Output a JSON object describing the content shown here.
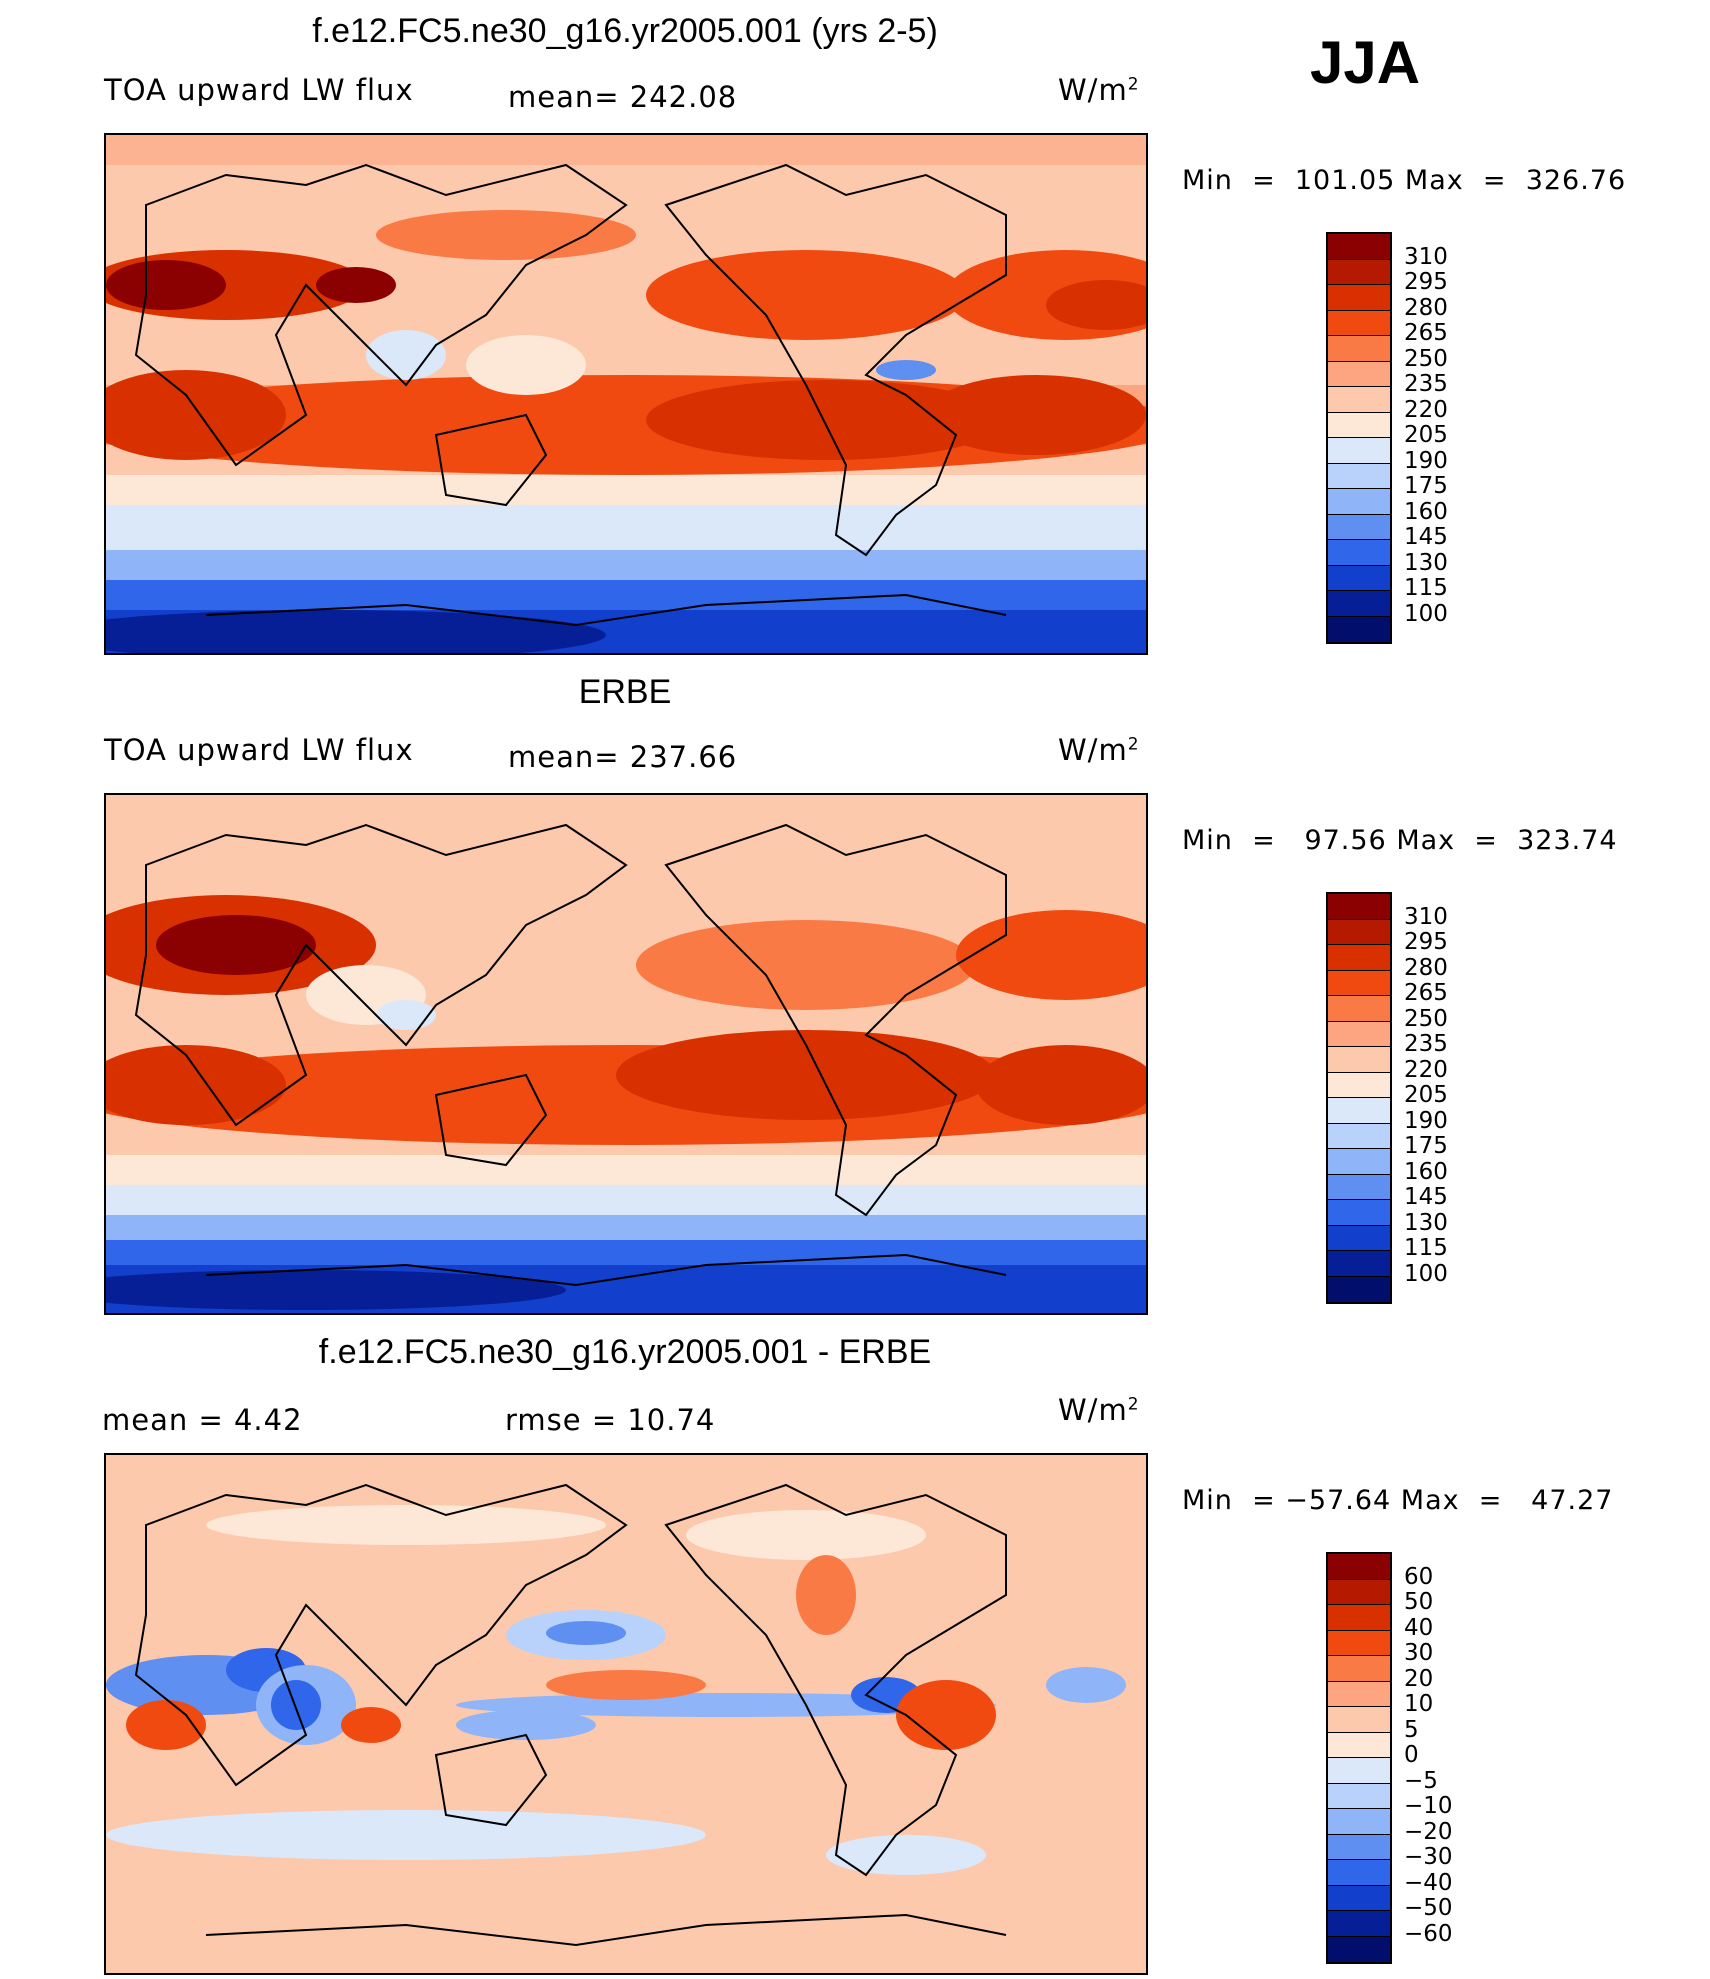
{
  "season_label": "JJA",
  "units": "W/m",
  "units_sup": "2",
  "panels": [
    {
      "title": "f.e12.FC5.ne30_g16.yr2005.001 (yrs 2-5)",
      "left_label": "TOA upward LW flux",
      "stat_label": "mean= 242.08",
      "minmax": "Min  =  101.05 Max  =  326.76",
      "ticks": [
        "310",
        "295",
        "280",
        "265",
        "250",
        "235",
        "220",
        "205",
        "190",
        "175",
        "160",
        "145",
        "130",
        "115",
        "100"
      ]
    },
    {
      "title": "ERBE",
      "left_label": "TOA upward LW flux",
      "stat_label": "mean= 237.66",
      "minmax": "Min  =   97.56 Max  =  323.74",
      "ticks": [
        "310",
        "295",
        "280",
        "265",
        "250",
        "235",
        "220",
        "205",
        "190",
        "175",
        "160",
        "145",
        "130",
        "115",
        "100"
      ]
    },
    {
      "title": "f.e12.FC5.ne30_g16.yr2005.001 - ERBE",
      "left_label": "mean =    4.42",
      "stat_label": "rmse  =    10.74",
      "minmax": "Min  = −57.64 Max  =   47.27",
      "ticks": [
        "60",
        "50",
        "40",
        "30",
        "20",
        "10",
        "5",
        "0",
        "−5",
        "−10",
        "−20",
        "−30",
        "−40",
        "−50",
        "−60"
      ]
    }
  ],
  "colorbar_colors": [
    "#8b0000",
    "#b51a00",
    "#d93000",
    "#f04a10",
    "#fa7a45",
    "#fca580",
    "#fcc9ad",
    "#fde8d8",
    "#dbe8fa",
    "#b8d2fb",
    "#8fb4f7",
    "#5f8ff0",
    "#2f66ea",
    "#123fcc",
    "#061f96",
    "#020e6b"
  ]
}
